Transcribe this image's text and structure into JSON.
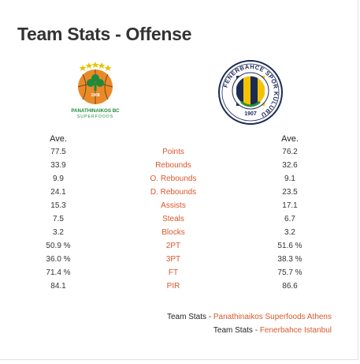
{
  "title": "Team Stats - Offense",
  "teams": {
    "left": {
      "logo_text_top": "PANATHINAIKOS BC",
      "logo_text_bottom": "SUPERFOODS",
      "logo_year": "1908",
      "col_header": "Ave."
    },
    "right": {
      "logo_text": "FENERBAHCE SPOR KULUBU",
      "logo_year": "1907",
      "col_header": "Ave."
    }
  },
  "stats": [
    {
      "label": "Points",
      "left": "77.5",
      "right": "76.2"
    },
    {
      "label": "Rebounds",
      "left": "33.9",
      "right": "32.6"
    },
    {
      "label": "O. Rebounds",
      "left": "9.9",
      "right": "9.1"
    },
    {
      "label": "D. Rebounds",
      "left": "24.1",
      "right": "23.5"
    },
    {
      "label": "Assists",
      "left": "15.3",
      "right": "17.1"
    },
    {
      "label": "Steals",
      "left": "7.5",
      "right": "6.7"
    },
    {
      "label": "Blocks",
      "left": "3.2",
      "right": "3.2"
    },
    {
      "label": "2PT",
      "left": "50.9 %",
      "right": "51.6 %"
    },
    {
      "label": "3PT",
      "left": "36.0 %",
      "right": "38.3 %"
    },
    {
      "label": "FT",
      "left": "71.4 %",
      "right": "75.7 %"
    },
    {
      "label": "PIR",
      "left": "84.1",
      "right": "86.6"
    }
  ],
  "links": [
    {
      "prefix": "Team Stats",
      "sep": " - ",
      "link": "Panathinaikos Superfoods Athens"
    },
    {
      "prefix": "Team Stats",
      "sep": " - ",
      "link": "Fenerbahce Istanbul"
    }
  ],
  "colors": {
    "accent": "#d9582b",
    "pao_green": "#1d8a3b",
    "fener_navy": "#1c2a56",
    "fener_yellow": "#f3c300"
  }
}
